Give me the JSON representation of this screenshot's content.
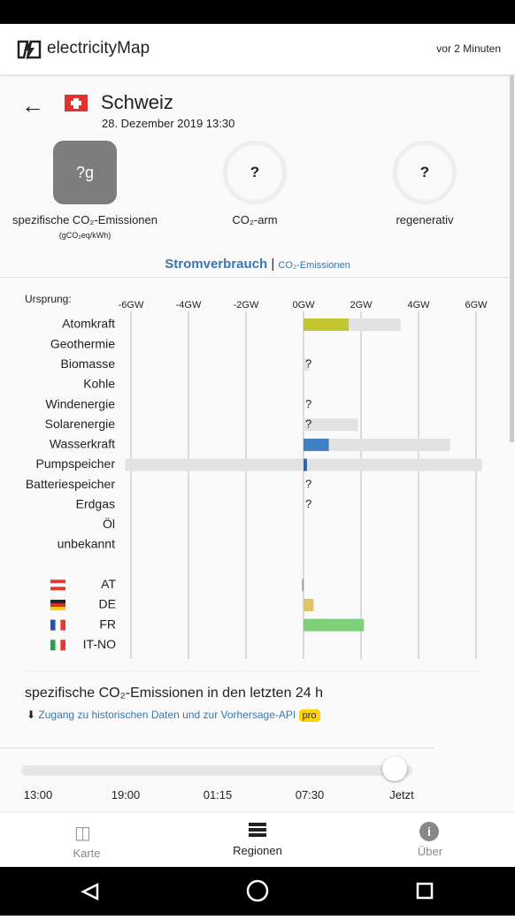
{
  "header": {
    "app_name": "electricityMap",
    "updated": "vor 2 Minuten"
  },
  "zone": {
    "name": "Schweiz",
    "datetime": "28. Dezember 2019 13:30"
  },
  "metrics": [
    {
      "value": "?g",
      "label": "spezifische CO₂-Emissionen",
      "unit": "(gCO₂eq/kWh)"
    },
    {
      "value": "?",
      "label": "CO₂-arm"
    },
    {
      "value": "?",
      "label": "regenerativ"
    }
  ],
  "tabs": {
    "active": "Stromverbrauch",
    "separator": "|",
    "other": "CO₂-Emissionen"
  },
  "chart_data": {
    "type": "bar",
    "orientation": "horizontal",
    "ylabel": "Ursprung:",
    "categories": [
      "Atomkraft",
      "Geothermie",
      "Biomasse",
      "Kohle",
      "Windenergie",
      "Solarenergie",
      "Wasserkraft",
      "Pumpspeicher",
      "Batteriespeicher",
      "Erdgas",
      "Öl",
      "unbekannt"
    ],
    "values": [
      1.57,
      null,
      null,
      null,
      null,
      null,
      0.88,
      0.12,
      null,
      null,
      null,
      null
    ],
    "value_labels": [
      null,
      null,
      "?",
      null,
      "?",
      "?",
      null,
      null,
      "?",
      "?",
      null,
      null
    ],
    "capacity": [
      3.38,
      null,
      0.2,
      null,
      null,
      1.9,
      5.1,
      6.2,
      null,
      null,
      null,
      null
    ],
    "capacity_negative": [
      null,
      null,
      null,
      null,
      null,
      null,
      null,
      -6.2,
      null,
      null,
      null,
      null
    ],
    "colors": [
      "#c3c531",
      null,
      null,
      null,
      null,
      null,
      "#3f7fc3",
      "#2c64b4",
      null,
      null,
      null,
      null
    ],
    "capacity_color": "#e2e2e2",
    "exchanges": {
      "categories": [
        "AT",
        "DE",
        "FR",
        "IT-NO"
      ],
      "values": [
        -0.05,
        0.35,
        2.1,
        0.02
      ],
      "colors": [
        "#9a9a9a",
        "#e3c465",
        "#80d07a",
        "#f2d68a"
      ]
    },
    "xlim": [
      -6.2,
      6.2
    ],
    "xticks": [
      {
        "value": -6,
        "label": "-6GW"
      },
      {
        "value": -4,
        "label": "-4GW"
      },
      {
        "value": -2,
        "label": "-2GW"
      },
      {
        "value": 0,
        "label": "0GW"
      },
      {
        "value": 2,
        "label": "2GW"
      },
      {
        "value": 4,
        "label": "4GW"
      },
      {
        "value": 6,
        "label": "6GW"
      }
    ],
    "grid": true
  },
  "history": {
    "title": "spezifische CO₂-Emissionen in den letzten 24 h",
    "link": "Zugang zu historischen Daten und zur Vorhersage-API",
    "badge": "pro"
  },
  "slider": {
    "labels": [
      "13:00",
      "19:00",
      "01:15",
      "07:30",
      "Jetzt"
    ]
  },
  "nav": [
    "Karte",
    "Regionen",
    "Über"
  ]
}
